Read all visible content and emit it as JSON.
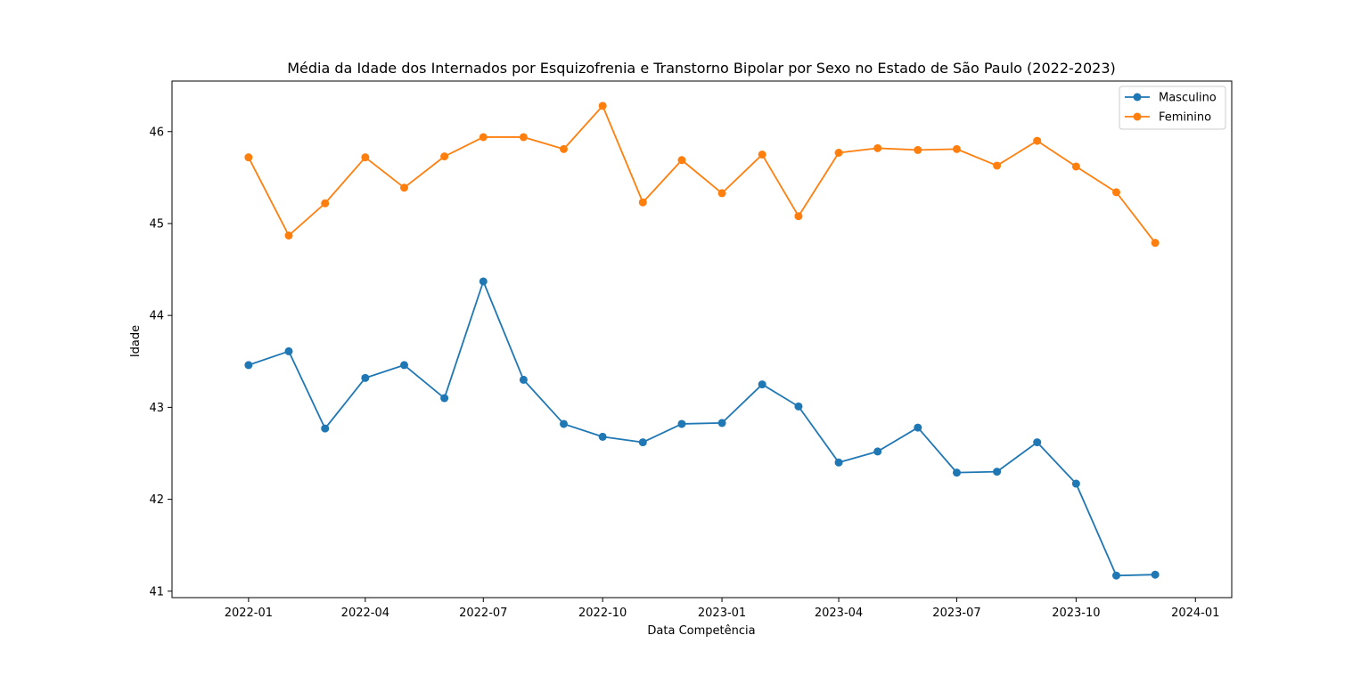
{
  "chart_data": {
    "type": "line",
    "title": "Média da Idade dos Internados por Esquizofrenia e Transtorno Bipolar por Sexo no Estado de São Paulo (2022-2023)",
    "xlabel": "Data Competência",
    "ylabel": "Idade",
    "x": [
      "2022-01",
      "2022-02",
      "2022-03",
      "2022-04",
      "2022-05",
      "2022-06",
      "2022-07",
      "2022-08",
      "2022-09",
      "2022-10",
      "2022-11",
      "2022-12",
      "2023-01",
      "2023-02",
      "2023-03",
      "2023-04",
      "2023-05",
      "2023-06",
      "2023-07",
      "2023-08",
      "2023-09",
      "2023-10",
      "2023-11",
      "2023-12"
    ],
    "xlim": [
      "2021-11-03",
      "2024-01-29"
    ],
    "ylim": [
      40.93,
      46.55
    ],
    "xticks": [
      "2022-01",
      "2022-04",
      "2022-07",
      "2022-10",
      "2023-01",
      "2023-04",
      "2023-07",
      "2023-10",
      "2024-01"
    ],
    "yticks": [
      41,
      42,
      43,
      44,
      45,
      46
    ],
    "grid": false,
    "legend_position": "top-right",
    "series": [
      {
        "name": "Masculino",
        "color": "#1f77b4",
        "marker": "circle",
        "values": [
          43.46,
          43.61,
          42.77,
          43.32,
          43.46,
          43.1,
          44.37,
          43.3,
          42.82,
          42.68,
          42.62,
          42.82,
          42.83,
          43.25,
          43.01,
          42.4,
          42.52,
          42.78,
          42.29,
          42.3,
          42.62,
          42.17,
          41.17,
          41.18
        ]
      },
      {
        "name": "Feminino",
        "color": "#ff7f0e",
        "marker": "circle",
        "values": [
          45.72,
          44.87,
          45.22,
          45.72,
          45.39,
          45.73,
          45.94,
          45.94,
          45.81,
          46.28,
          45.23,
          45.69,
          45.33,
          45.75,
          45.08,
          45.77,
          45.82,
          45.8,
          45.81,
          45.63,
          45.9,
          45.62,
          45.34,
          44.79
        ]
      }
    ]
  }
}
